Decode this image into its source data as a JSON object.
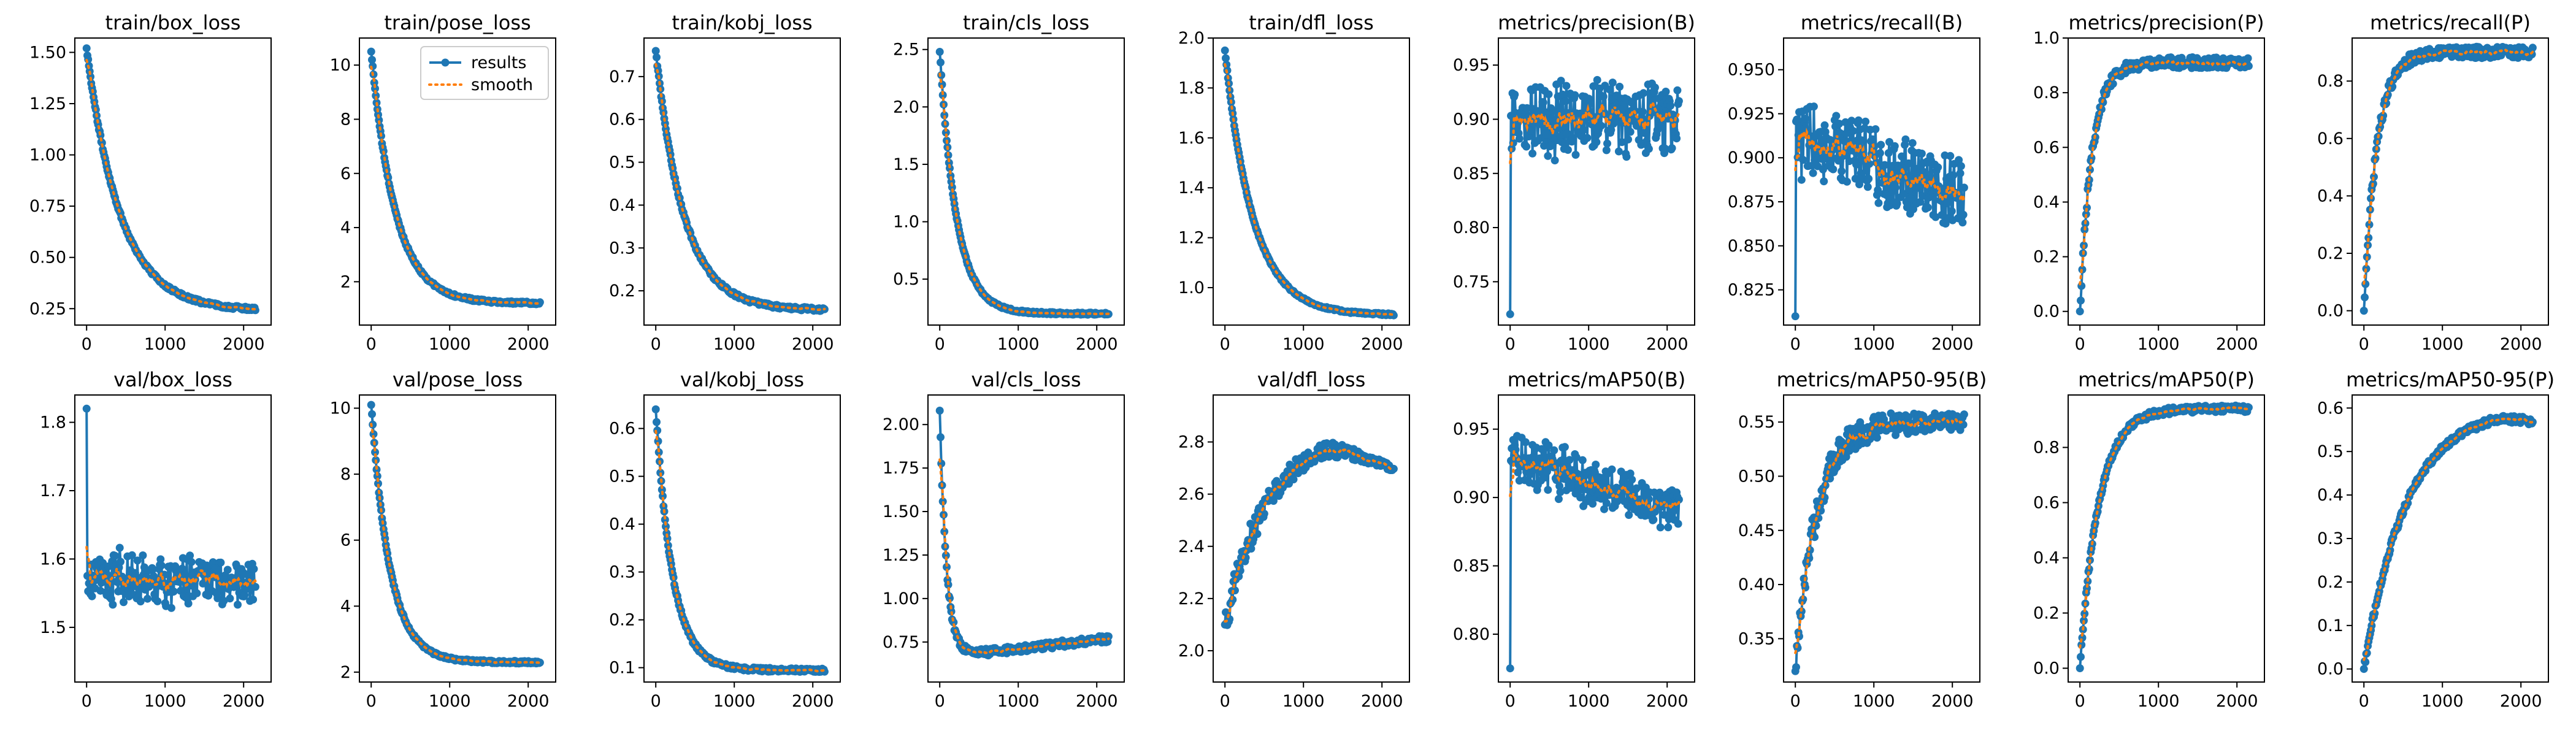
{
  "figure": {
    "colors": {
      "results": "#1f77b4",
      "smooth": "#ff7f0e"
    }
  },
  "chart_data": [
    {
      "type": "line",
      "title": "train/box_loss",
      "xticks": [
        0,
        1000,
        2000
      ],
      "ylim": [
        0.17,
        1.57
      ],
      "yticks": [
        0.25,
        0.5,
        0.75,
        1.0,
        1.25,
        1.5
      ],
      "ytick_labels": [
        "0.25",
        "0.50",
        "0.75",
        "1.00",
        "1.25",
        "1.50"
      ],
      "pattern": "decay",
      "start": 1.52,
      "end": 0.24,
      "rate": 5,
      "noise": 0.008,
      "legend": null
    },
    {
      "type": "line",
      "title": "train/pose_loss",
      "xticks": [
        0,
        1000,
        2000
      ],
      "ylim": [
        0.4,
        11.0
      ],
      "yticks": [
        2,
        4,
        6,
        8,
        10
      ],
      "ytick_labels": [
        "2",
        "4",
        "6",
        "8",
        "10"
      ],
      "pattern": "decay",
      "start": 10.5,
      "end": 1.2,
      "rate": 7,
      "noise": 0.05,
      "legend": {
        "position": "upper right",
        "entries": [
          "results",
          "smooth"
        ]
      }
    },
    {
      "type": "line",
      "title": "train/kobj_loss",
      "xticks": [
        0,
        1000,
        2000
      ],
      "ylim": [
        0.12,
        0.79
      ],
      "yticks": [
        0.2,
        0.3,
        0.4,
        0.5,
        0.6,
        0.7
      ],
      "ytick_labels": [
        "0.2",
        "0.3",
        "0.4",
        "0.5",
        "0.6",
        "0.7"
      ],
      "pattern": "decay",
      "start": 0.76,
      "end": 0.155,
      "rate": 6,
      "noise": 0.004,
      "legend": null
    },
    {
      "type": "line",
      "title": "train/cls_loss",
      "xticks": [
        0,
        1000,
        2000
      ],
      "ylim": [
        0.1,
        2.6
      ],
      "yticks": [
        0.5,
        1.0,
        1.5,
        2.0,
        2.5
      ],
      "ytick_labels": [
        "0.5",
        "1.0",
        "1.5",
        "2.0",
        "2.5"
      ],
      "pattern": "decay",
      "start": 2.48,
      "end": 0.2,
      "rate": 10,
      "noise": 0.01,
      "legend": null
    },
    {
      "type": "line",
      "title": "train/dfl_loss",
      "xticks": [
        0,
        1000,
        2000
      ],
      "ylim": [
        0.85,
        2.0
      ],
      "yticks": [
        1.0,
        1.2,
        1.4,
        1.6,
        1.8,
        2.0
      ],
      "ytick_labels": [
        "1.0",
        "1.2",
        "1.4",
        "1.6",
        "1.8",
        "2.0"
      ],
      "pattern": "decay",
      "start": 1.95,
      "end": 0.89,
      "rate": 6,
      "noise": 0.004,
      "legend": null
    },
    {
      "type": "line",
      "title": "metrics/precision(B)",
      "xticks": [
        0,
        1000,
        2000
      ],
      "ylim": [
        0.71,
        0.975
      ],
      "yticks": [
        0.75,
        0.8,
        0.85,
        0.9,
        0.95
      ],
      "ytick_labels": [
        "0.75",
        "0.80",
        "0.85",
        "0.90",
        "0.95"
      ],
      "pattern": "noisy",
      "start": 0.72,
      "base": 0.9,
      "amp": 0.03,
      "noise": 0.02,
      "legend": null
    },
    {
      "type": "line",
      "title": "metrics/recall(B)",
      "xticks": [
        0,
        1000,
        2000
      ],
      "ylim": [
        0.805,
        0.968
      ],
      "yticks": [
        0.825,
        0.85,
        0.875,
        0.9,
        0.925,
        0.95
      ],
      "ytick_labels": [
        "0.825",
        "0.850",
        "0.875",
        "0.900",
        "0.925",
        "0.950"
      ],
      "pattern": "noisy_down",
      "start": 0.81,
      "base": 0.91,
      "end": 0.88,
      "amp": 0.02,
      "noise": 0.015,
      "legend": null
    },
    {
      "type": "line",
      "title": "metrics/precision(P)",
      "xticks": [
        0,
        1000,
        2000
      ],
      "ylim": [
        -0.05,
        1.0
      ],
      "yticks": [
        0.0,
        0.2,
        0.4,
        0.6,
        0.8,
        1.0
      ],
      "ytick_labels": [
        "0.0",
        "0.2",
        "0.4",
        "0.6",
        "0.8",
        "1.0"
      ],
      "pattern": "rise",
      "start": 0.0,
      "end": 0.91,
      "rate": 14,
      "noise": 0.02,
      "legend": null
    },
    {
      "type": "line",
      "title": "metrics/recall(P)",
      "xticks": [
        0,
        1000,
        2000
      ],
      "ylim": [
        -0.05,
        0.95
      ],
      "yticks": [
        0.0,
        0.2,
        0.4,
        0.6,
        0.8
      ],
      "ytick_labels": [
        "0.0",
        "0.2",
        "0.4",
        "0.6",
        "0.8"
      ],
      "pattern": "rise",
      "start": 0.0,
      "end": 0.9,
      "rate": 13,
      "noise": 0.02,
      "legend": null
    },
    {
      "type": "line",
      "title": "val/box_loss",
      "xticks": [
        0,
        1000,
        2000
      ],
      "ylim": [
        1.42,
        1.84
      ],
      "yticks": [
        1.5,
        1.6,
        1.7,
        1.8
      ],
      "ytick_labels": [
        "1.5",
        "1.6",
        "1.7",
        "1.8"
      ],
      "pattern": "noisy",
      "start": 1.82,
      "base": 1.57,
      "amp": 0.03,
      "noise": 0.04,
      "legend": null
    },
    {
      "type": "line",
      "title": "val/pose_loss",
      "xticks": [
        0,
        1000,
        2000
      ],
      "ylim": [
        1.7,
        10.4
      ],
      "yticks": [
        2,
        4,
        6,
        8,
        10
      ],
      "ytick_labels": [
        "2",
        "4",
        "6",
        "8",
        "10"
      ],
      "pattern": "decay",
      "start": 10.1,
      "end": 2.3,
      "rate": 9,
      "noise": 0.04,
      "legend": null
    },
    {
      "type": "line",
      "title": "val/kobj_loss",
      "xticks": [
        0,
        1000,
        2000
      ],
      "ylim": [
        0.07,
        0.67
      ],
      "yticks": [
        0.1,
        0.2,
        0.3,
        0.4,
        0.5,
        0.6
      ],
      "ytick_labels": [
        "0.1",
        "0.2",
        "0.3",
        "0.4",
        "0.5",
        "0.6"
      ],
      "pattern": "decay",
      "start": 0.64,
      "end": 0.095,
      "rate": 10,
      "noise": 0.004,
      "legend": null
    },
    {
      "type": "line",
      "title": "val/cls_loss",
      "xticks": [
        0,
        1000,
        2000
      ],
      "ylim": [
        0.52,
        2.17
      ],
      "yticks": [
        0.75,
        1.0,
        1.25,
        1.5,
        1.75,
        2.0
      ],
      "ytick_labels": [
        "0.75",
        "1.00",
        "1.25",
        "1.50",
        "1.75",
        "2.00"
      ],
      "pattern": "dip",
      "start": 2.08,
      "low": 0.66,
      "end": 0.77,
      "noise": 0.02,
      "legend": null
    },
    {
      "type": "line",
      "title": "val/dfl_loss",
      "xticks": [
        0,
        1000,
        2000
      ],
      "ylim": [
        1.88,
        2.98
      ],
      "yticks": [
        2.0,
        2.2,
        2.4,
        2.6,
        2.8
      ],
      "ytick_labels": [
        "2.0",
        "2.2",
        "2.4",
        "2.6",
        "2.8"
      ],
      "pattern": "hump",
      "start": 2.1,
      "peak": 2.84,
      "end": 2.71,
      "noise": 0.05,
      "legend": null
    },
    {
      "type": "line",
      "title": "metrics/mAP50(B)",
      "xticks": [
        0,
        1000,
        2000
      ],
      "ylim": [
        0.765,
        0.975
      ],
      "yticks": [
        0.8,
        0.85,
        0.9,
        0.95
      ],
      "ytick_labels": [
        "0.80",
        "0.85",
        "0.90",
        "0.95"
      ],
      "pattern": "noisy_down",
      "start": 0.775,
      "base": 0.93,
      "end": 0.89,
      "amp": 0.015,
      "noise": 0.015,
      "legend": null
    },
    {
      "type": "line",
      "title": "metrics/mAP50-95(B)",
      "xticks": [
        0,
        1000,
        2000
      ],
      "ylim": [
        0.31,
        0.575
      ],
      "yticks": [
        0.35,
        0.4,
        0.45,
        0.5,
        0.55
      ],
      "ytick_labels": [
        "0.35",
        "0.40",
        "0.45",
        "0.50",
        "0.55"
      ],
      "pattern": "rise_noisy",
      "start": 0.32,
      "end": 0.55,
      "rate": 8,
      "noise": 0.015,
      "legend": null
    },
    {
      "type": "line",
      "title": "metrics/mAP50(P)",
      "xticks": [
        0,
        1000,
        2000
      ],
      "ylim": [
        -0.05,
        0.99
      ],
      "yticks": [
        0.0,
        0.2,
        0.4,
        0.6,
        0.8
      ],
      "ytick_labels": [
        "0.0",
        "0.2",
        "0.4",
        "0.6",
        "0.8"
      ],
      "pattern": "rise",
      "start": 0.0,
      "end": 0.94,
      "rate": 9,
      "noise": 0.012,
      "legend": null
    },
    {
      "type": "line",
      "title": "metrics/mAP50-95(P)",
      "xticks": [
        0,
        1000,
        2000
      ],
      "ylim": [
        -0.03,
        0.63
      ],
      "yticks": [
        0.0,
        0.1,
        0.2,
        0.3,
        0.4,
        0.5,
        0.6
      ],
      "ytick_labels": [
        "0.0",
        "0.1",
        "0.2",
        "0.3",
        "0.4",
        "0.5",
        "0.6"
      ],
      "pattern": "rise_peak",
      "start": 0.0,
      "peak": 0.6,
      "end": 0.58,
      "rate": 4,
      "noise": 0.008,
      "legend": null
    }
  ]
}
